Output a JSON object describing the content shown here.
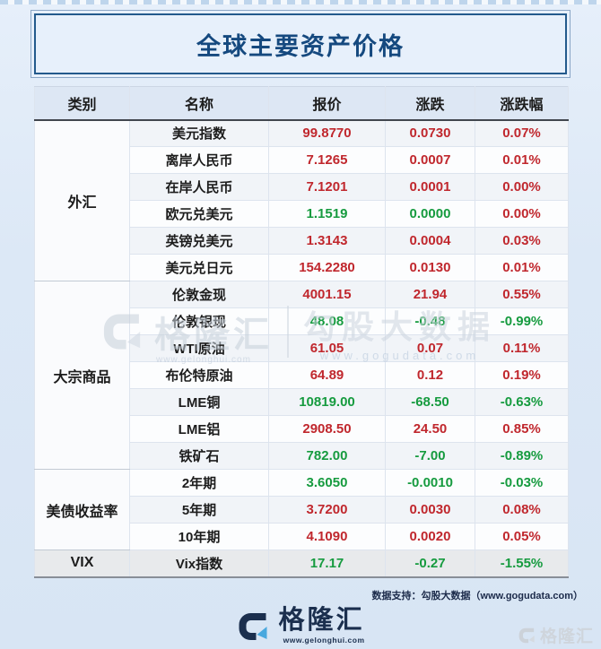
{
  "title": "全球主要资产价格",
  "table": {
    "headers": [
      "类别",
      "名称",
      "报价",
      "涨跌",
      "涨跌幅"
    ],
    "sections": [
      {
        "category": "外汇",
        "rows": [
          {
            "name": "美元指数",
            "price": "99.8770",
            "change": "0.0730",
            "pct": "0.07%",
            "c": [
              "up",
              "up",
              "up"
            ]
          },
          {
            "name": "离岸人民币",
            "price": "7.1265",
            "change": "0.0007",
            "pct": "0.01%",
            "c": [
              "up",
              "up",
              "up"
            ]
          },
          {
            "name": "在岸人民币",
            "price": "7.1201",
            "change": "0.0001",
            "pct": "0.00%",
            "c": [
              "up",
              "up",
              "up"
            ]
          },
          {
            "name": "欧元兑美元",
            "price": "1.1519",
            "change": "0.0000",
            "pct": "0.00%",
            "c": [
              "down",
              "down",
              "up"
            ]
          },
          {
            "name": "英镑兑美元",
            "price": "1.3143",
            "change": "0.0004",
            "pct": "0.03%",
            "c": [
              "up",
              "up",
              "up"
            ]
          },
          {
            "name": "美元兑日元",
            "price": "154.2280",
            "change": "0.0130",
            "pct": "0.01%",
            "c": [
              "up",
              "up",
              "up"
            ]
          }
        ]
      },
      {
        "category": "大宗商品",
        "rows": [
          {
            "name": "伦敦金现",
            "price": "4001.15",
            "change": "21.94",
            "pct": "0.55%",
            "c": [
              "up",
              "up",
              "up"
            ]
          },
          {
            "name": "伦敦银现",
            "price": "48.08",
            "change": "-0.48",
            "pct": "-0.99%",
            "c": [
              "down",
              "down",
              "down"
            ]
          },
          {
            "name": "WTI原油",
            "price": "61.05",
            "change": "0.07",
            "pct": "0.11%",
            "c": [
              "up",
              "up",
              "up"
            ]
          },
          {
            "name": "布伦特原油",
            "price": "64.89",
            "change": "0.12",
            "pct": "0.19%",
            "c": [
              "up",
              "up",
              "up"
            ]
          },
          {
            "name": "LME铜",
            "price": "10819.00",
            "change": "-68.50",
            "pct": "-0.63%",
            "c": [
              "down",
              "down",
              "down"
            ]
          },
          {
            "name": "LME铝",
            "price": "2908.50",
            "change": "24.50",
            "pct": "0.85%",
            "c": [
              "up",
              "up",
              "up"
            ]
          },
          {
            "name": "铁矿石",
            "price": "782.00",
            "change": "-7.00",
            "pct": "-0.89%",
            "c": [
              "down",
              "down",
              "down"
            ]
          }
        ]
      },
      {
        "category": "美债收益率",
        "rows": [
          {
            "name": "2年期",
            "price": "3.6050",
            "change": "-0.0010",
            "pct": "-0.03%",
            "c": [
              "down",
              "down",
              "down"
            ]
          },
          {
            "name": "5年期",
            "price": "3.7200",
            "change": "0.0030",
            "pct": "0.08%",
            "c": [
              "up",
              "up",
              "up"
            ]
          },
          {
            "name": "10年期",
            "price": "4.1090",
            "change": "0.0020",
            "pct": "0.05%",
            "c": [
              "up",
              "up",
              "up"
            ]
          }
        ]
      },
      {
        "category": "VIX",
        "rows": [
          {
            "name": "Vix指数",
            "price": "17.17",
            "change": "-0.27",
            "pct": "-1.55%",
            "c": [
              "down",
              "down",
              "down"
            ]
          }
        ]
      }
    ]
  },
  "watermark_center": {
    "brand": "格隆汇",
    "brand_url": "www.gelonghui.com",
    "data_brand": "勾股大数据",
    "data_url": "www.gogudata.com"
  },
  "footer": {
    "support": "数据支持：勾股大数据（www.gogudata.com）",
    "logo_text": "格隆汇",
    "logo_url": "www.gelonghui.com",
    "corner_watermark": "格隆汇"
  },
  "colors": {
    "up": "#c0272d",
    "down": "#169b3f",
    "accent": "#235a8c",
    "title_text": "#15497f"
  }
}
